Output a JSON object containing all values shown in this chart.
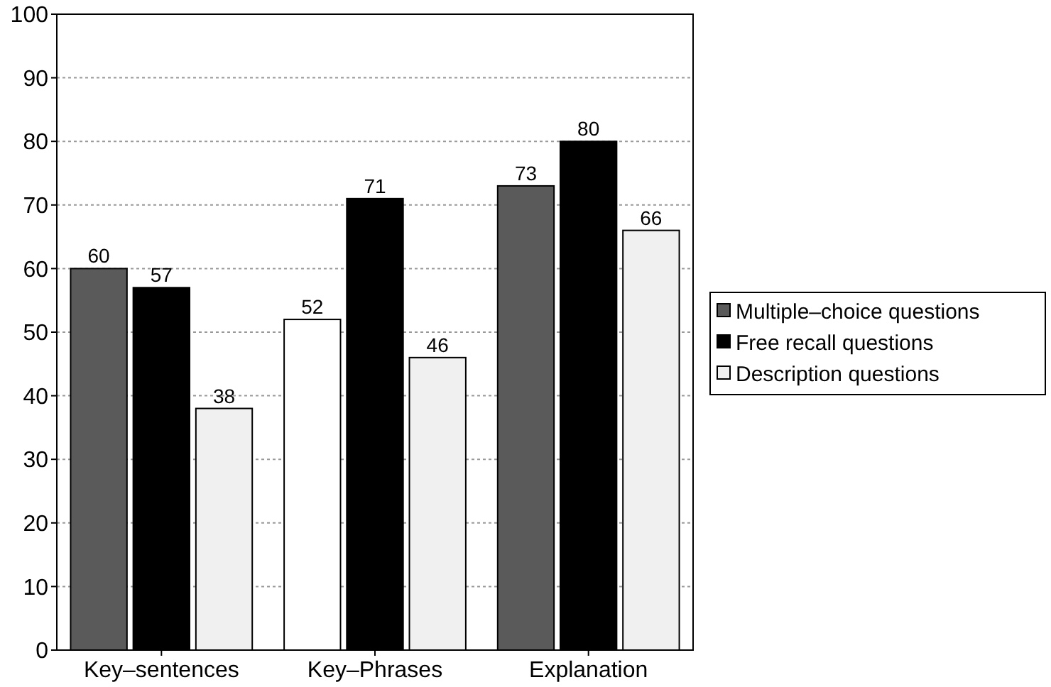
{
  "chart_data": {
    "type": "bar",
    "categories": [
      "Key–sentences",
      "Key–Phrases",
      "Explanation"
    ],
    "series": [
      {
        "name": "Multiple–choice questions",
        "color": "#5a5a5a",
        "colors": [
          "#5a5a5a",
          "#ffffff",
          "#5a5a5a"
        ],
        "values": [
          60,
          52,
          73
        ]
      },
      {
        "name": "Free recall questions",
        "color": "#000000",
        "values": [
          57,
          71,
          80
        ]
      },
      {
        "name": "Description questions",
        "color": "#f0f0f0",
        "values": [
          38,
          46,
          66
        ]
      }
    ],
    "ylim": [
      0,
      100
    ],
    "yticks": [
      0,
      10,
      20,
      30,
      40,
      50,
      60,
      70,
      80,
      90,
      100
    ],
    "grid": "y",
    "data_labels": true,
    "legend": "right"
  }
}
